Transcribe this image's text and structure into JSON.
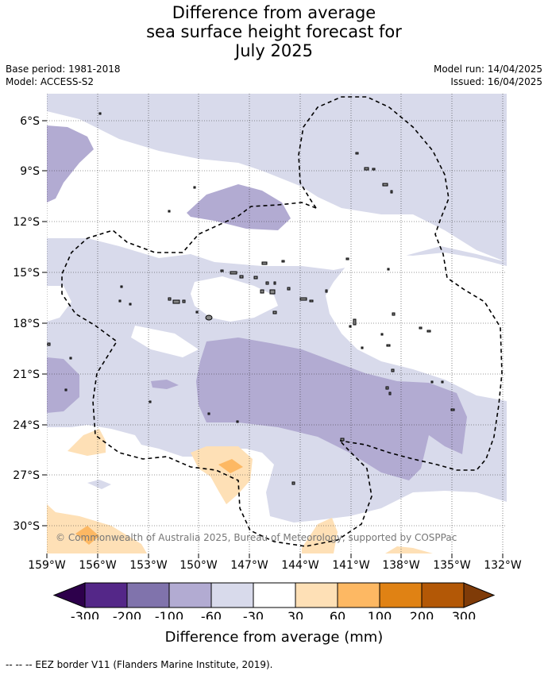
{
  "title_lines": [
    "Difference from average",
    "sea surface height forecast for",
    "July 2025"
  ],
  "meta": {
    "base_period": "Base period: 1981-2018",
    "model": "Model: ACCESS-S2",
    "model_run": "Model run: 14/04/2025",
    "issued": "Issued: 16/04/2025"
  },
  "lat_labels": [
    "6°S",
    "9°S",
    "12°S",
    "15°S",
    "18°S",
    "21°S",
    "24°S",
    "27°S",
    "30°S"
  ],
  "lon_labels": [
    "159°W",
    "156°W",
    "153°W",
    "150°W",
    "147°W",
    "144°W",
    "141°W",
    "138°W",
    "135°W",
    "132°W"
  ],
  "copyright": "© Commonwealth of Australia 2025, Bureau of Meteorology, supported by COSPPac",
  "colorbar": {
    "labels": [
      "-300",
      "-200",
      "-100",
      "-60",
      "-30",
      "30",
      "60",
      "100",
      "200",
      "300"
    ],
    "colors": {
      "below_min": "#2d004b",
      "bins": [
        "#542788",
        "#8073ac",
        "#b2abd2",
        "#d8daeb",
        "#ffffff",
        "#fee0b6",
        "#fdb863",
        "#e08214",
        "#b35806"
      ],
      "above_max": "#7f3b08"
    },
    "title": "Difference from average (mm)"
  },
  "footnote": "--  --  -- EEZ border V11 (Flanders Marine Institute, 2019)."
}
